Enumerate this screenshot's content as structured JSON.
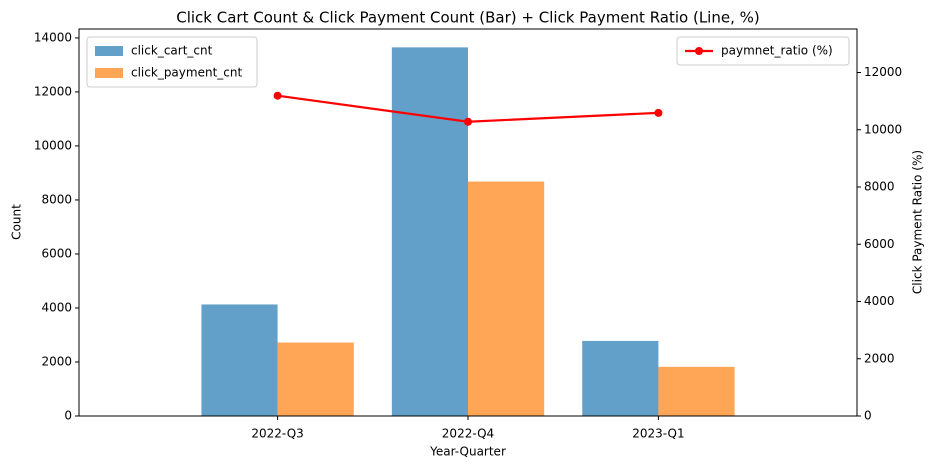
{
  "chart_data": {
    "type": "bar",
    "title": "Click Cart Count & Click Payment Count (Bar) + Click Payment Ratio (Line, %)",
    "x_label": "Year-Quarter",
    "y_label": "Count",
    "y2_label": "Click Payment Ratio (%)",
    "categories": [
      "2022-Q3",
      "2022-Q4",
      "2023-Q1"
    ],
    "series": [
      {
        "name": "click_cart_cnt",
        "type": "bar",
        "color": "#1f77b4",
        "values": [
          4130,
          13650,
          2780
        ]
      },
      {
        "name": "click_payment_cnt",
        "type": "bar",
        "color": "#ff7f0e",
        "values": [
          2720,
          8680,
          1820
        ]
      },
      {
        "name": "paymnet_ratio (%)",
        "type": "line",
        "axis": "y2",
        "color": "#ff0000",
        "values": [
          11190,
          10280,
          10590
        ]
      }
    ],
    "ylim": [
      0,
      14330
    ],
    "yticks": [
      0,
      2000,
      4000,
      6000,
      8000,
      10000,
      12000,
      14000
    ],
    "y2lim": [
      0,
      13520
    ],
    "y2ticks": [
      0,
      2000,
      4000,
      6000,
      8000,
      10000,
      12000
    ],
    "legend": "upper left",
    "legend2": "upper right",
    "grid": false
  }
}
